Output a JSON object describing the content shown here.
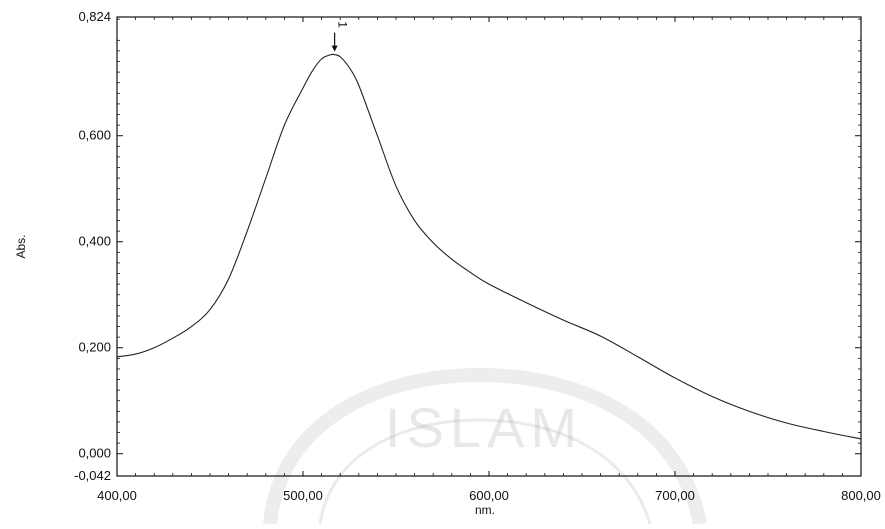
{
  "chart_data": {
    "type": "line",
    "title": "",
    "xlabel": "nm.",
    "ylabel": "Abs.",
    "xlim": [
      400,
      800
    ],
    "ylim": [
      -0.042,
      0.824
    ],
    "x_ticks": [
      {
        "value": 400,
        "label": "400,00"
      },
      {
        "value": 500,
        "label": "500,00"
      },
      {
        "value": 600,
        "label": "600,00"
      },
      {
        "value": 700,
        "label": "700,00"
      },
      {
        "value": 800,
        "label": "800,00"
      }
    ],
    "y_ticks": [
      {
        "value": 0.824,
        "label": "0,824"
      },
      {
        "value": 0.6,
        "label": "0,600"
      },
      {
        "value": 0.4,
        "label": "0,400"
      },
      {
        "value": 0.2,
        "label": "0,200"
      },
      {
        "value": 0.0,
        "label": "0,000"
      },
      {
        "value": -0.042,
        "label": "-0,042"
      }
    ],
    "series": [
      {
        "x": [
          400,
          410,
          420,
          430,
          440,
          450,
          460,
          470,
          480,
          490,
          500,
          505,
          510,
          515,
          517,
          520,
          525,
          530,
          540,
          550,
          560,
          570,
          580,
          590,
          600,
          620,
          640,
          660,
          680,
          700,
          720,
          740,
          760,
          780,
          800
        ],
        "y": [
          0.183,
          0.188,
          0.2,
          0.218,
          0.24,
          0.272,
          0.33,
          0.42,
          0.52,
          0.62,
          0.69,
          0.722,
          0.745,
          0.753,
          0.753,
          0.749,
          0.728,
          0.695,
          0.6,
          0.505,
          0.44,
          0.398,
          0.367,
          0.342,
          0.32,
          0.285,
          0.252,
          0.222,
          0.183,
          0.143,
          0.108,
          0.08,
          0.058,
          0.042,
          0.028
        ],
        "color": "#222222"
      }
    ],
    "peak_markers": [
      {
        "label": "1",
        "x": 517,
        "y": 0.753
      }
    ],
    "grid": false,
    "legend": "none"
  },
  "watermark": {
    "text": "ISLAM"
  }
}
